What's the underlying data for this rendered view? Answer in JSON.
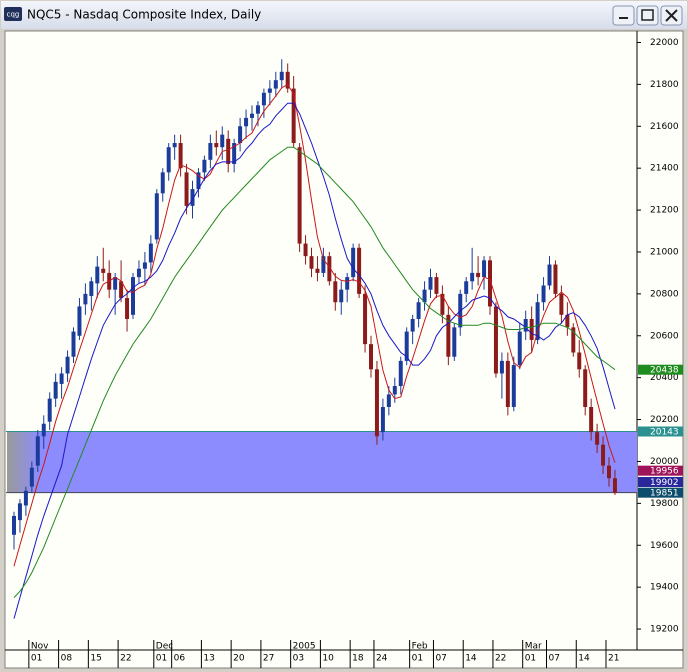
{
  "window_title": "NQC5 - Nasdaq Composite Index, Daily",
  "app_icon": "cqg",
  "chart_data": {
    "type": "candlestick",
    "up_color": "#1c3c9c",
    "down_color": "#8c1c1c",
    "ylim": [
      19100,
      22050
    ],
    "yticks": [
      19200,
      19400,
      19600,
      19800,
      20000,
      20200,
      20400,
      20600,
      20800,
      21000,
      21200,
      21400,
      21600,
      21800,
      22000
    ],
    "day_labels": [
      null,
      null,
      null,
      "01",
      null,
      null,
      null,
      null,
      "08",
      null,
      null,
      null,
      null,
      "15",
      null,
      null,
      null,
      null,
      "22",
      null,
      null,
      null,
      null,
      null,
      "01",
      null,
      null,
      "06",
      null,
      null,
      null,
      null,
      "13",
      null,
      null,
      null,
      null,
      "20",
      null,
      null,
      null,
      null,
      "27",
      null,
      null,
      null,
      null,
      "03",
      null,
      null,
      null,
      null,
      "10",
      null,
      null,
      null,
      null,
      "18",
      null,
      null,
      null,
      "24",
      null,
      null,
      null,
      null,
      null,
      "01",
      null,
      null,
      null,
      "07",
      null,
      null,
      null,
      null,
      "14",
      null,
      null,
      null,
      null,
      "22",
      null,
      null,
      null,
      null,
      "01",
      null,
      null,
      null,
      "07",
      null,
      null,
      null,
      null,
      "14",
      null,
      null,
      null,
      null,
      "21",
      null
    ],
    "month_labels": [
      null,
      null,
      null,
      "Nov",
      null,
      null,
      null,
      null,
      null,
      null,
      null,
      null,
      null,
      null,
      null,
      null,
      null,
      null,
      null,
      null,
      null,
      null,
      null,
      null,
      "Dec",
      null,
      null,
      null,
      null,
      null,
      null,
      null,
      null,
      null,
      null,
      null,
      null,
      null,
      null,
      null,
      null,
      null,
      null,
      null,
      null,
      null,
      null,
      "2005",
      null,
      null,
      null,
      null,
      null,
      null,
      null,
      null,
      null,
      null,
      null,
      null,
      null,
      null,
      null,
      null,
      null,
      null,
      null,
      "Feb",
      null,
      null,
      null,
      null,
      null,
      null,
      null,
      null,
      null,
      null,
      null,
      null,
      null,
      null,
      null,
      null,
      null,
      null,
      "Mar",
      null,
      null,
      null,
      null,
      null,
      null,
      null,
      null,
      null,
      null,
      null,
      null,
      null,
      null,
      null
    ],
    "candles": [
      [
        19650,
        19760,
        19580,
        19740
      ],
      [
        19720,
        19820,
        19660,
        19800
      ],
      [
        19790,
        19880,
        19740,
        19860
      ],
      [
        19880,
        20000,
        19850,
        19970
      ],
      [
        19980,
        20150,
        19950,
        20120
      ],
      [
        20120,
        20220,
        20060,
        20180
      ],
      [
        20190,
        20330,
        20150,
        20300
      ],
      [
        20300,
        20420,
        20260,
        20380
      ],
      [
        20370,
        20450,
        20300,
        20420
      ],
      [
        20420,
        20530,
        20380,
        20500
      ],
      [
        20500,
        20640,
        20470,
        20620
      ],
      [
        20600,
        20780,
        20580,
        20740
      ],
      [
        20750,
        20850,
        20700,
        20800
      ],
      [
        20790,
        20880,
        20720,
        20860
      ],
      [
        20850,
        20980,
        20780,
        20930
      ],
      [
        20920,
        21020,
        20860,
        20900
      ],
      [
        20900,
        20960,
        20780,
        20820
      ],
      [
        20820,
        20900,
        20700,
        20880
      ],
      [
        20860,
        20960,
        20760,
        20780
      ],
      [
        20780,
        20820,
        20620,
        20680
      ],
      [
        20700,
        20900,
        20680,
        20880
      ],
      [
        20880,
        20960,
        20850,
        20920
      ],
      [
        20920,
        21000,
        20840,
        20950
      ],
      [
        20950,
        21080,
        20900,
        21040
      ],
      [
        21060,
        21300,
        21040,
        21280
      ],
      [
        21280,
        21400,
        21240,
        21380
      ],
      [
        21380,
        21520,
        21340,
        21500
      ],
      [
        21500,
        21560,
        21440,
        21520
      ],
      [
        21520,
        21560,
        21360,
        21400
      ],
      [
        21380,
        21420,
        21180,
        21220
      ],
      [
        21220,
        21340,
        21160,
        21300
      ],
      [
        21300,
        21400,
        21260,
        21380
      ],
      [
        21380,
        21460,
        21340,
        21440
      ],
      [
        21440,
        21560,
        21400,
        21520
      ],
      [
        21520,
        21580,
        21460,
        21500
      ],
      [
        21500,
        21600,
        21440,
        21560
      ],
      [
        21540,
        21580,
        21380,
        21420
      ],
      [
        21420,
        21540,
        21380,
        21520
      ],
      [
        21520,
        21640,
        21480,
        21600
      ],
      [
        21600,
        21680,
        21540,
        21640
      ],
      [
        21640,
        21700,
        21580,
        21660
      ],
      [
        21660,
        21720,
        21600,
        21700
      ],
      [
        21700,
        21780,
        21640,
        21760
      ],
      [
        21760,
        21820,
        21700,
        21780
      ],
      [
        21780,
        21860,
        21740,
        21820
      ],
      [
        21820,
        21920,
        21780,
        21860
      ],
      [
        21860,
        21900,
        21760,
        21780
      ],
      [
        21780,
        21840,
        21500,
        21520
      ],
      [
        21500,
        21520,
        21000,
        21040
      ],
      [
        21040,
        21080,
        20940,
        20980
      ],
      [
        20980,
        21020,
        20880,
        20920
      ],
      [
        20920,
        20980,
        20860,
        20900
      ],
      [
        20900,
        21020,
        20880,
        20980
      ],
      [
        20980,
        21000,
        20840,
        20860
      ],
      [
        20860,
        20900,
        20720,
        20760
      ],
      [
        20760,
        20860,
        20700,
        20820
      ],
      [
        20820,
        20900,
        20760,
        20880
      ],
      [
        20880,
        21040,
        20860,
        21020
      ],
      [
        21020,
        21040,
        20780,
        20800
      ],
      [
        20800,
        20840,
        20520,
        20560
      ],
      [
        20560,
        20600,
        20400,
        20440
      ],
      [
        20440,
        20480,
        20080,
        20120
      ],
      [
        20140,
        20300,
        20100,
        20260
      ],
      [
        20260,
        20360,
        20220,
        20320
      ],
      [
        20320,
        20400,
        20280,
        20360
      ],
      [
        20360,
        20500,
        20320,
        20480
      ],
      [
        20480,
        20640,
        20460,
        20620
      ],
      [
        20620,
        20700,
        20560,
        20680
      ],
      [
        20680,
        20780,
        20640,
        20760
      ],
      [
        20760,
        20860,
        20720,
        20820
      ],
      [
        20820,
        20920,
        20780,
        20880
      ],
      [
        20880,
        20900,
        20780,
        20800
      ],
      [
        20800,
        20840,
        20660,
        20700
      ],
      [
        20700,
        20740,
        20460,
        20500
      ],
      [
        20500,
        20660,
        20480,
        20640
      ],
      [
        20640,
        20820,
        20600,
        20800
      ],
      [
        20800,
        20880,
        20760,
        20860
      ],
      [
        20860,
        21020,
        20820,
        20900
      ],
      [
        20900,
        20980,
        20840,
        20880
      ],
      [
        20880,
        20980,
        20820,
        20960
      ],
      [
        20960,
        20980,
        20700,
        20740
      ],
      [
        20740,
        20760,
        20400,
        20420
      ],
      [
        20420,
        20520,
        20300,
        20480
      ],
      [
        20480,
        20520,
        20220,
        20260
      ],
      [
        20260,
        20500,
        20240,
        20460
      ],
      [
        20460,
        20660,
        20440,
        20620
      ],
      [
        20620,
        20720,
        20580,
        20680
      ],
      [
        20680,
        20740,
        20520,
        20580
      ],
      [
        20580,
        20800,
        20560,
        20760
      ],
      [
        20760,
        20880,
        20720,
        20840
      ],
      [
        20840,
        20980,
        20820,
        20940
      ],
      [
        20940,
        20960,
        20780,
        20800
      ],
      [
        20800,
        20840,
        20660,
        20700
      ],
      [
        20700,
        20760,
        20600,
        20640
      ],
      [
        20640,
        20660,
        20500,
        20520
      ],
      [
        20520,
        20580,
        20400,
        20440
      ],
      [
        20440,
        20460,
        20220,
        20260
      ],
      [
        20260,
        20300,
        20100,
        20140
      ],
      [
        20140,
        20180,
        20040,
        20080
      ],
      [
        20080,
        20120,
        19940,
        19980
      ],
      [
        19980,
        20020,
        19880,
        19920
      ],
      [
        19920,
        19960,
        19840,
        19850
      ]
    ],
    "series": [
      {
        "color": "#c81818",
        "values": [
          19500,
          19600,
          19700,
          19800,
          19898,
          19986,
          20086,
          20190,
          20280,
          20356,
          20444,
          20532,
          20616,
          20704,
          20790,
          20846,
          20862,
          20878,
          20862,
          20812,
          20808,
          20828,
          20842,
          20894,
          21014,
          21114,
          21230,
          21344,
          21416,
          21404,
          21388,
          21364,
          21348,
          21372,
          21428,
          21480,
          21488,
          21504,
          21520,
          21548,
          21568,
          21624,
          21672,
          21708,
          21744,
          21784,
          21800,
          21752,
          21604,
          21436,
          21248,
          21072,
          20964,
          20928,
          20884,
          20864,
          20860,
          20868,
          20856,
          20816,
          20740,
          20588,
          20436,
          20340,
          20300,
          20308,
          20408,
          20492,
          20580,
          20672,
          20752,
          20788,
          20792,
          20740,
          20704,
          20688,
          20700,
          20740,
          20816,
          20880,
          20868,
          20780,
          20696,
          20572,
          20472,
          20448,
          20500,
          20520,
          20620,
          20696,
          20760,
          20784,
          20808,
          20784,
          20720,
          20620,
          20512,
          20400,
          20288,
          20180,
          20076,
          19994
        ]
      },
      {
        "color": "#1818c8",
        "values": [
          19250,
          19350,
          19450,
          19550,
          19650,
          19740,
          19820,
          19900,
          19980,
          20130,
          20220,
          20310,
          20400,
          20490,
          20570,
          20650,
          20700,
          20750,
          20780,
          20800,
          20830,
          20850,
          20860,
          20880,
          20910,
          20960,
          21030,
          21090,
          21160,
          21210,
          21250,
          21300,
          21350,
          21390,
          21420,
          21430,
          21430,
          21430,
          21450,
          21490,
          21520,
          21560,
          21590,
          21610,
          21650,
          21680,
          21710,
          21710,
          21660,
          21590,
          21520,
          21440,
          21360,
          21270,
          21160,
          21060,
          20970,
          20920,
          20890,
          20850,
          20800,
          20720,
          20650,
          20600,
          20560,
          20520,
          20500,
          20460,
          20460,
          20490,
          20530,
          20600,
          20640,
          20660,
          20690,
          20720,
          20740,
          20770,
          20780,
          20790,
          20780,
          20740,
          20720,
          20690,
          20680,
          20660,
          20640,
          20610,
          20600,
          20580,
          20600,
          20640,
          20660,
          20700,
          20710,
          20690,
          20650,
          20600,
          20540,
          20450,
          20350,
          20250
        ]
      },
      {
        "color": "#208a20",
        "values": [
          19350,
          19380,
          19420,
          19470,
          19530,
          19590,
          19660,
          19730,
          19800,
          19870,
          19940,
          20010,
          20080,
          20150,
          20220,
          20290,
          20350,
          20410,
          20460,
          20510,
          20560,
          20600,
          20640,
          20680,
          20730,
          20780,
          20830,
          20880,
          20920,
          20960,
          21000,
          21040,
          21080,
          21120,
          21160,
          21200,
          21230,
          21260,
          21290,
          21320,
          21350,
          21380,
          21410,
          21440,
          21460,
          21480,
          21500,
          21500,
          21480,
          21460,
          21440,
          21420,
          21390,
          21360,
          21330,
          21300,
          21270,
          21240,
          21200,
          21160,
          21120,
          21070,
          21020,
          20980,
          20940,
          20900,
          20860,
          20820,
          20790,
          20760,
          20730,
          20710,
          20690,
          20670,
          20660,
          20650,
          20650,
          20650,
          20650,
          20660,
          20660,
          20650,
          20640,
          20630,
          20630,
          20630,
          20640,
          20640,
          20650,
          20660,
          20660,
          20660,
          20650,
          20640,
          20620,
          20590,
          20560,
          20530,
          20500,
          20480,
          20460,
          20438
        ]
      }
    ],
    "zone": {
      "from": 19851,
      "to": 20143,
      "color": "#8c8cff",
      "line_color": "#2a9090"
    },
    "price_labels": [
      {
        "value": 20438,
        "color": "#1e8c1e"
      },
      {
        "value": 20143,
        "color": "#2a9090"
      },
      {
        "value": 19956,
        "color": "#a0145a"
      },
      {
        "value": 19902,
        "color": "#28289c"
      },
      {
        "value": 19851,
        "color": "#0c4c6c"
      }
    ]
  }
}
